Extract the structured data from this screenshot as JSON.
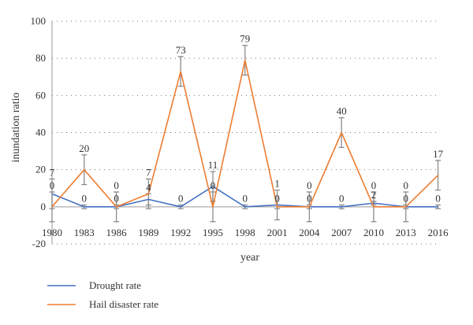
{
  "chart_data": {
    "type": "line",
    "title": "",
    "xlabel": "year",
    "ylabel": "inundation ratio",
    "categories": [
      "1980",
      "1983",
      "1986",
      "1989",
      "1992",
      "1995",
      "1998",
      "2001",
      "2004",
      "2007",
      "2010",
      "2013",
      "2016"
    ],
    "ylim": [
      -20,
      100
    ],
    "yticks": [
      "-20",
      "0",
      "20",
      "40",
      "60",
      "80",
      "100"
    ],
    "grid": true,
    "legend_position": "bottom-left",
    "series": [
      {
        "name": "Drought rate",
        "color": "#4472c4",
        "values": [
          7,
          0,
          0,
          4,
          0,
          11,
          0,
          1,
          0,
          0,
          2,
          0,
          0
        ],
        "labels": [
          "7",
          "0",
          "0",
          "4",
          "0",
          "11",
          "0",
          "1",
          "0",
          "0",
          "2",
          "0",
          "0"
        ],
        "error": [
          8,
          1,
          8,
          3,
          1,
          8,
          1,
          8,
          8,
          1,
          1,
          8,
          1
        ]
      },
      {
        "name": "Hail disaster rate",
        "color": "#ed7d31",
        "values": [
          0,
          20,
          0,
          7,
          73,
          0,
          79,
          0,
          0,
          40,
          0,
          0,
          17
        ],
        "labels": [
          "0",
          "20",
          "0",
          "7",
          "73",
          "0",
          "79",
          "0",
          "0",
          "40",
          "0",
          "0",
          "17"
        ],
        "error": [
          8,
          8,
          1,
          8,
          8,
          8,
          8,
          1,
          1,
          8,
          8,
          1,
          8
        ]
      }
    ]
  }
}
